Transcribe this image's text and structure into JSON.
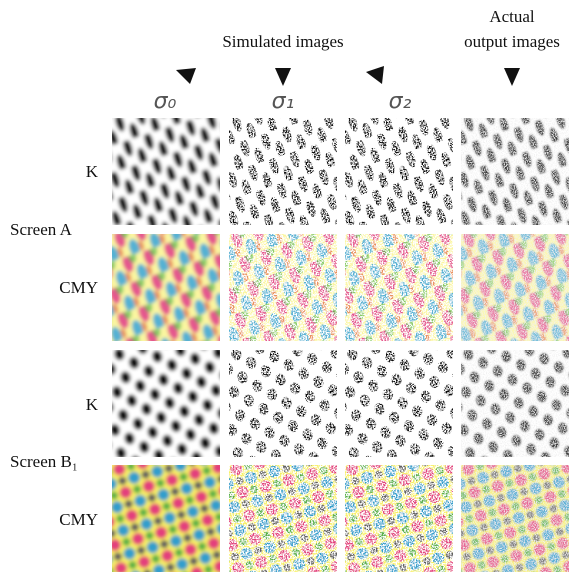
{
  "header": {
    "simulated": "Simulated images",
    "actual": [
      "Actual",
      "output images"
    ]
  },
  "sigma_labels": [
    "σ₀",
    "σ₁",
    "σ₂"
  ],
  "screens": [
    {
      "name": "Screen A",
      "rows": [
        "K",
        "CMY"
      ]
    },
    {
      "name": "Screen B₁",
      "rows": [
        "K",
        "CMY"
      ]
    }
  ]
}
